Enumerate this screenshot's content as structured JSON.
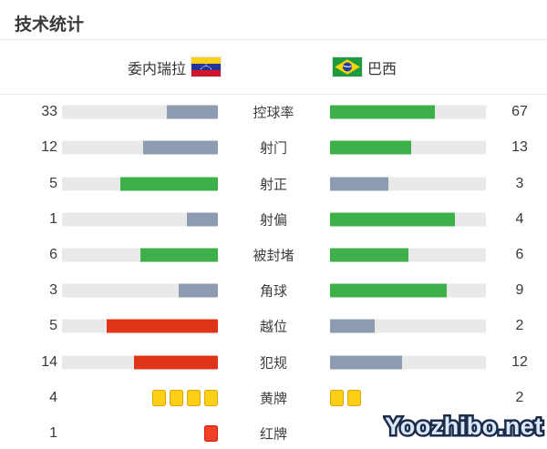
{
  "title": "技术统计",
  "teams": {
    "home": {
      "name": "委内瑞拉",
      "flag": "venezuela-flag"
    },
    "away": {
      "name": "巴西",
      "flag": "brazil-flag"
    }
  },
  "watermark": "Yoozhibo.net",
  "colors": {
    "green": "#3eb04a",
    "slate": "#8e9cb1",
    "red": "#e03418",
    "track": "#e9e9e9",
    "yellow_card": "#fdd017",
    "red_card": "#f23f27"
  },
  "rows": [
    {
      "key": "possession",
      "label": "控球率",
      "type": "bar",
      "left": {
        "value": "33",
        "fill": 33,
        "color": "slate"
      },
      "right": {
        "value": "67",
        "fill": 67,
        "color": "green"
      }
    },
    {
      "key": "shots",
      "label": "射门",
      "type": "bar",
      "left": {
        "value": "12",
        "fill": 48,
        "color": "slate"
      },
      "right": {
        "value": "13",
        "fill": 52,
        "color": "green"
      }
    },
    {
      "key": "shots-on-target",
      "label": "射正",
      "type": "bar",
      "left": {
        "value": "5",
        "fill": 62.5,
        "color": "green"
      },
      "right": {
        "value": "3",
        "fill": 37.5,
        "color": "slate"
      }
    },
    {
      "key": "shots-off-target",
      "label": "射偏",
      "type": "bar",
      "left": {
        "value": "1",
        "fill": 20,
        "color": "slate"
      },
      "right": {
        "value": "4",
        "fill": 80,
        "color": "green"
      }
    },
    {
      "key": "blocked",
      "label": "被封堵",
      "type": "bar",
      "left": {
        "value": "6",
        "fill": 50,
        "color": "green"
      },
      "right": {
        "value": "6",
        "fill": 50,
        "color": "green"
      }
    },
    {
      "key": "corners",
      "label": "角球",
      "type": "bar",
      "left": {
        "value": "3",
        "fill": 25,
        "color": "slate"
      },
      "right": {
        "value": "9",
        "fill": 75,
        "color": "green"
      }
    },
    {
      "key": "offsides",
      "label": "越位",
      "type": "bar",
      "left": {
        "value": "5",
        "fill": 71.4,
        "color": "red"
      },
      "right": {
        "value": "2",
        "fill": 28.6,
        "color": "slate"
      }
    },
    {
      "key": "fouls",
      "label": "犯规",
      "type": "bar",
      "left": {
        "value": "14",
        "fill": 53.8,
        "color": "red"
      },
      "right": {
        "value": "12",
        "fill": 46.2,
        "color": "slate"
      }
    },
    {
      "key": "yellow-cards",
      "label": "黄牌",
      "type": "cards",
      "left": {
        "value": "4",
        "cards": 4,
        "card": "yellow"
      },
      "right": {
        "value": "2",
        "cards": 2,
        "card": "yellow"
      }
    },
    {
      "key": "red-cards",
      "label": "红牌",
      "type": "cards",
      "left": {
        "value": "1",
        "cards": 1,
        "card": "red"
      },
      "right": {
        "value": "",
        "cards": 0,
        "card": "red"
      }
    }
  ],
  "chart_data": {
    "type": "bar",
    "title": "技术统计",
    "categories": [
      "控球率",
      "射门",
      "射正",
      "射偏",
      "被封堵",
      "角球",
      "越位",
      "犯规",
      "黄牌",
      "红牌"
    ],
    "series": [
      {
        "name": "委内瑞拉",
        "values": [
          33,
          12,
          5,
          1,
          6,
          3,
          5,
          14,
          4,
          1
        ]
      },
      {
        "name": "巴西",
        "values": [
          67,
          13,
          3,
          4,
          6,
          9,
          2,
          12,
          2,
          null
        ]
      }
    ],
    "legend_position": "top",
    "layout": "paired horizontal bars, fill length = team share of stat; leader bar green (red for negative stats), trailing bar slate gray; card stats drawn as card icons"
  }
}
